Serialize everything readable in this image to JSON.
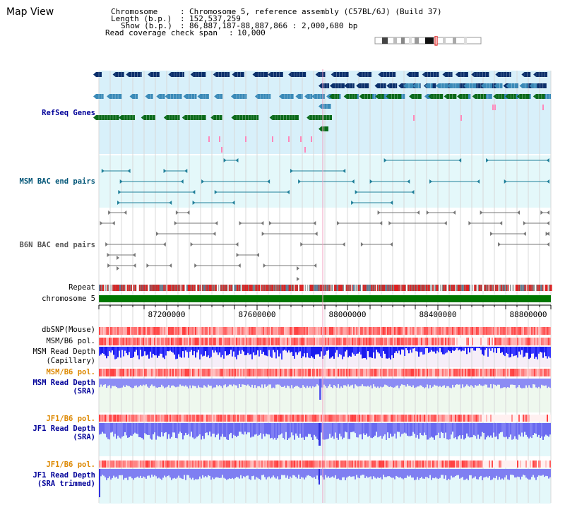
{
  "page": {
    "title": "Map View"
  },
  "header": {
    "chromosome_key": "Chromosome",
    "chromosome_val": "Chromosome 5, reference assembly (C57BL/6J) (Build 37)",
    "length_key": "Length (b.p.)",
    "length_val": "152,537,259",
    "show_key": "Show (b.p.)",
    "show_val": "86,887,187-88,887,866 : 2,000,680 bp",
    "coverage_key": "Read coverage check span",
    "coverage_val": "10,000"
  },
  "tracks": {
    "refseq": "RefSeq Genes",
    "msm_bac": "MSM BAC end pairs",
    "b6n_bac": "B6N BAC end pairs",
    "repeat": "Repeat",
    "chromosome": "chromosome 5",
    "dbsnp": "dbSNP(Mouse)",
    "msm_pol1": "MSM/B6 pol.",
    "msm_depth_cap_1": "MSM Read Depth",
    "msm_depth_cap_2": "(Capillary)",
    "msm_pol2": "MSM/B6 pol.",
    "msm_depth_sra_1": "MSM Read Depth",
    "msm_depth_sra_2": "(SRA)",
    "jf1_pol1": "JF1/B6 pol.",
    "jf1_depth_1": "JF1 Read Depth",
    "jf1_depth_2": "(SRA)",
    "jf1_pol2": "JF1/B6 pol.",
    "jf1_trim_1": "JF1 Read Depth",
    "jf1_trim_2": "(SRA trimmed)"
  },
  "axis": {
    "ticks": [
      "87200000",
      "87600000",
      "88000000",
      "88400000",
      "88800000"
    ]
  },
  "colors": {
    "refseq_bg": "#d8f0fa",
    "bac_bg": "#e4f8fa",
    "gene_dark": "#0a2f6b",
    "gene_mid": "#3a8ab8",
    "gene_green": "#0a6a1a",
    "bac_teal": "#1f7f99",
    "bac_gray": "#777777",
    "repeat_red": "#e02020",
    "chrom_green": "#007700",
    "pol_red": "#ee5555",
    "depth_blue": "#1a1aee",
    "depth_light": "#6060ee",
    "label_blue": "#000099",
    "label_orange": "#dd8800",
    "label_teal": "#005577"
  }
}
